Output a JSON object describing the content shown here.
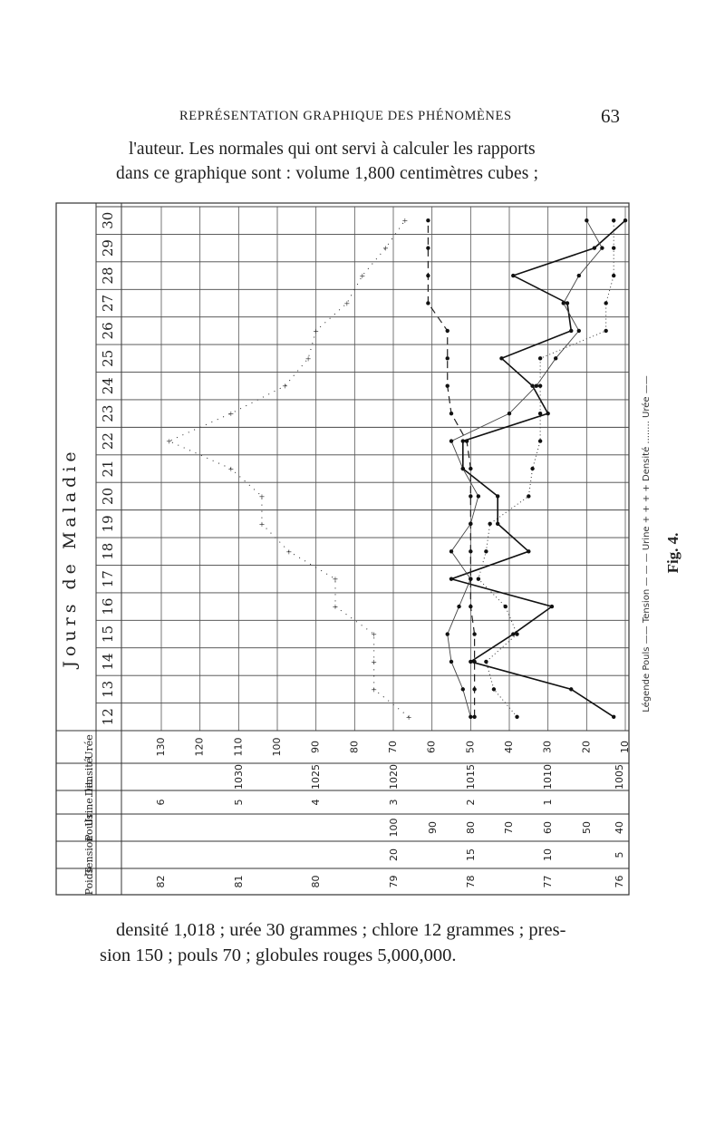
{
  "header": {
    "running_title": "REPRÉSENTATION GRAPHIQUE DES PHÉNOMÈNES",
    "page_number": "63"
  },
  "text": {
    "para1_line1": "l'auteur. Les normales qui ont servi à calculer les rapports",
    "para1_line2": "dans ce graphique sont : volume 1,800 centimètres cubes ;",
    "para2_line1": "densité 1,018 ; urée 30 grammes ; chlore 12 grammes ; pres-",
    "para2_line2": "sion 150 ; pouls 70 ; globules rouges 5,000,000."
  },
  "figure": {
    "caption": "Fig. 4.",
    "days_header": "Jours de Maladie",
    "legend": "Légende Pouls —— Tension — — — Urine + + + + Densité ........ Urée ——",
    "row_labels": [
      "Urée",
      "Densité",
      "Urine. lit.",
      "Pouls",
      "Tension",
      "Poids"
    ],
    "scales": {
      "uree": [
        "130",
        "120",
        "110",
        "100",
        "90",
        "80",
        "70",
        "60",
        "50",
        "40",
        "30",
        "20",
        "10"
      ],
      "densite": [
        "1030",
        "1025",
        "1020",
        "1015",
        "1010",
        "1005"
      ],
      "urine": [
        "6",
        "5",
        "4",
        "3",
        "2",
        "1"
      ],
      "pouls": [
        "100",
        "90",
        "80",
        "70",
        "60",
        "50",
        "40"
      ],
      "tension": [
        "20",
        "15",
        "10",
        "5"
      ],
      "poids": [
        "82",
        "81",
        "80",
        "79",
        "78",
        "77",
        "76"
      ]
    }
  },
  "chart_data": {
    "type": "line",
    "title": "Fig. 4.",
    "x_label": "Jours de Maladie",
    "x": [
      12,
      13,
      14,
      15,
      16,
      17,
      18,
      19,
      20,
      21,
      22,
      23,
      24,
      25,
      26,
      27,
      28,
      29,
      30
    ],
    "y_scale": "Urée",
    "ylim": [
      10,
      130
    ],
    "series": [
      {
        "name": "Pouls",
        "values": [
          13,
          24,
          50,
          39,
          29,
          55,
          35,
          43,
          43,
          52,
          52,
          30,
          34,
          42,
          24,
          25,
          39,
          18,
          10
        ]
      },
      {
        "name": "Tension",
        "values": [
          49,
          49,
          49,
          49,
          50,
          50,
          50,
          50,
          50,
          50,
          51,
          55,
          56,
          56,
          56,
          61,
          61,
          61,
          61
        ]
      },
      {
        "name": "Urine",
        "values": [
          66,
          75,
          75,
          75,
          85,
          85,
          97,
          104,
          104,
          112,
          128,
          112,
          98,
          92,
          90,
          82,
          78,
          72,
          67
        ]
      },
      {
        "name": "Densité",
        "values": [
          38,
          44,
          46,
          38,
          41,
          48,
          46,
          45,
          35,
          34,
          32,
          32,
          32,
          32,
          15,
          15,
          13,
          13,
          13
        ]
      },
      {
        "name": "Urée",
        "values": [
          50,
          52,
          55,
          56,
          53,
          50,
          55,
          50,
          48,
          52,
          55,
          40,
          33,
          28,
          22,
          26,
          22,
          16,
          20
        ]
      }
    ]
  }
}
